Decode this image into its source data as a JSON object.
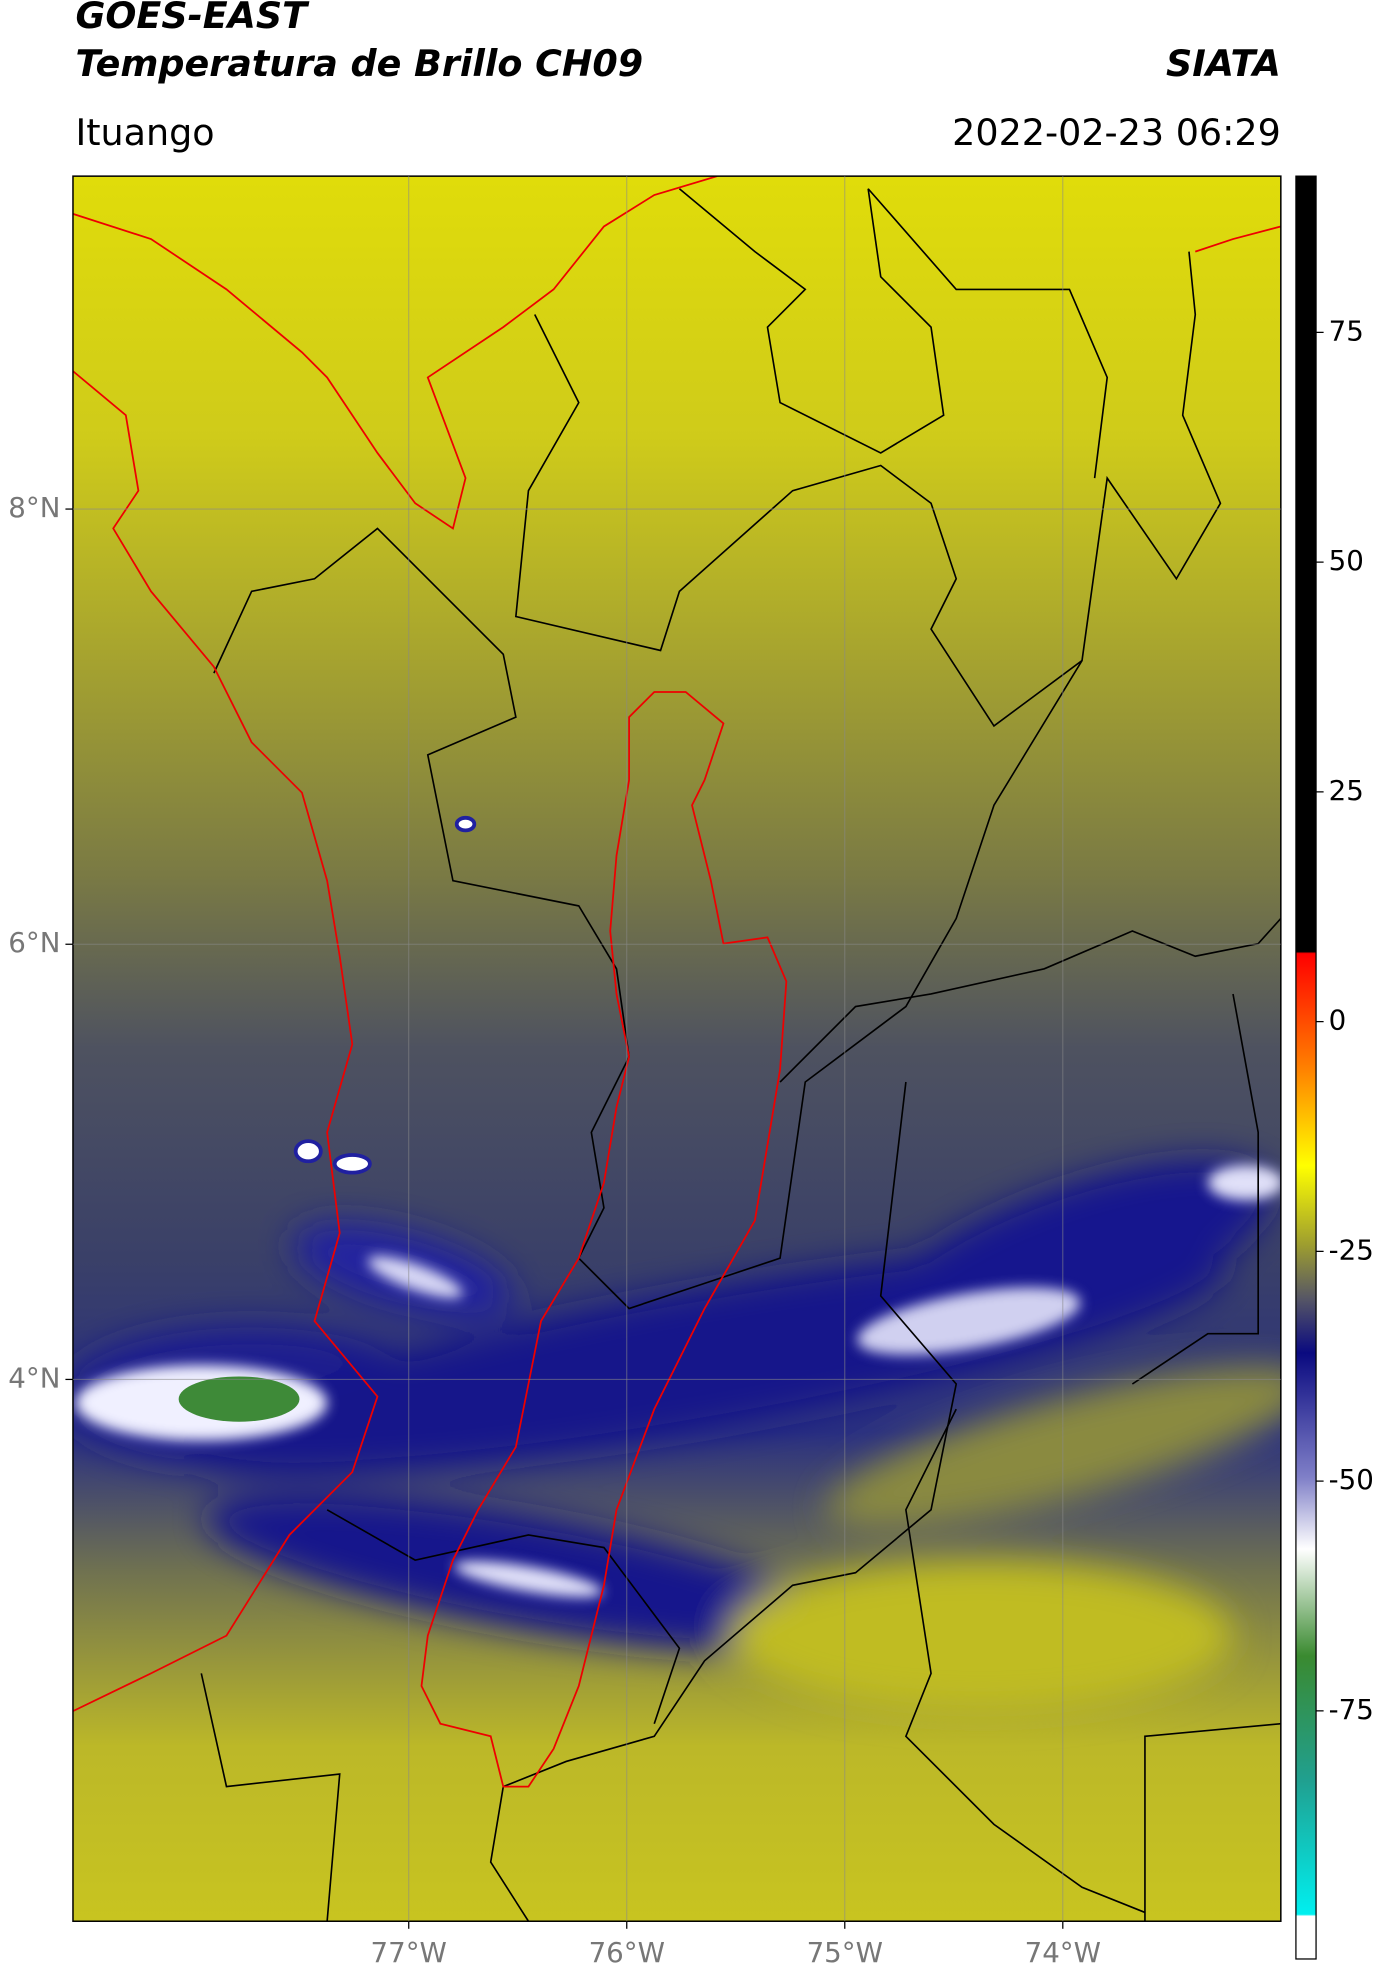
{
  "header": {
    "title_line1": "GOES-EAST",
    "title_line2": "Temperatura de Brillo CH09",
    "brand": "SIATA",
    "location": "Ituango",
    "timestamp": "2022-02-23 06:29"
  },
  "map": {
    "xlim": [
      -78.54,
      -73.0
    ],
    "ylim": [
      1.51,
      9.53
    ],
    "xticks": [
      {
        "value": -77,
        "label": "77°W"
      },
      {
        "value": -76,
        "label": "76°W"
      },
      {
        "value": -75,
        "label": "75°W"
      },
      {
        "value": -74,
        "label": "74°W"
      }
    ],
    "yticks": [
      {
        "value": 8,
        "label": "8°N"
      },
      {
        "value": 6,
        "label": "6°N"
      },
      {
        "value": 4,
        "label": "4°N"
      }
    ]
  },
  "colorbar": {
    "range": [
      -102,
      92
    ],
    "ticks": [
      75,
      50,
      25,
      0,
      -25,
      -50,
      -75
    ]
  }
}
